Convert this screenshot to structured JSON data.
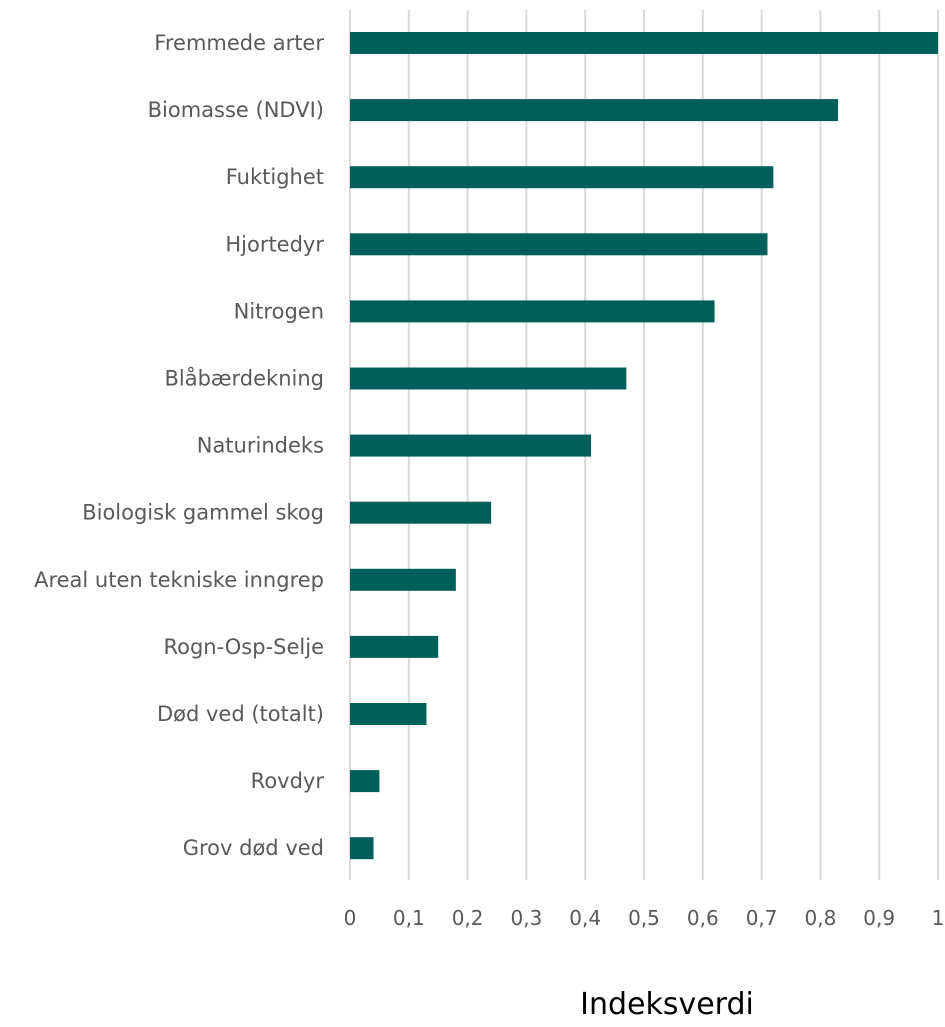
{
  "chart_data": {
    "type": "bar",
    "orientation": "horizontal",
    "categories": [
      "Fremmede arter",
      "Biomasse (NDVI)",
      "Fuktighet",
      "Hjortedyr",
      "Nitrogen ",
      "Blåbærdekning",
      "Naturindeks",
      "Biologisk gammel skog",
      "Areal uten tekniske inngrep",
      "Rogn-Osp-Selje",
      "Død ved (totalt)",
      "Rovdyr",
      "Grov død  ved"
    ],
    "values": [
      1.0,
      0.83,
      0.72,
      0.71,
      0.62,
      0.47,
      0.41,
      0.24,
      0.18,
      0.15,
      0.13,
      0.05,
      0.04
    ],
    "xlabel": "Indeksverdi",
    "ylabel": "",
    "title": "",
    "xlim": [
      0,
      1
    ],
    "x_ticks": [
      "0",
      "0,1",
      "0,2",
      "0,3",
      "0,4",
      "0,5",
      "0,6",
      "0,7",
      "0,8",
      "0,9",
      "1"
    ],
    "grid": true,
    "legend": "none",
    "bar_color": "#005f5a"
  }
}
